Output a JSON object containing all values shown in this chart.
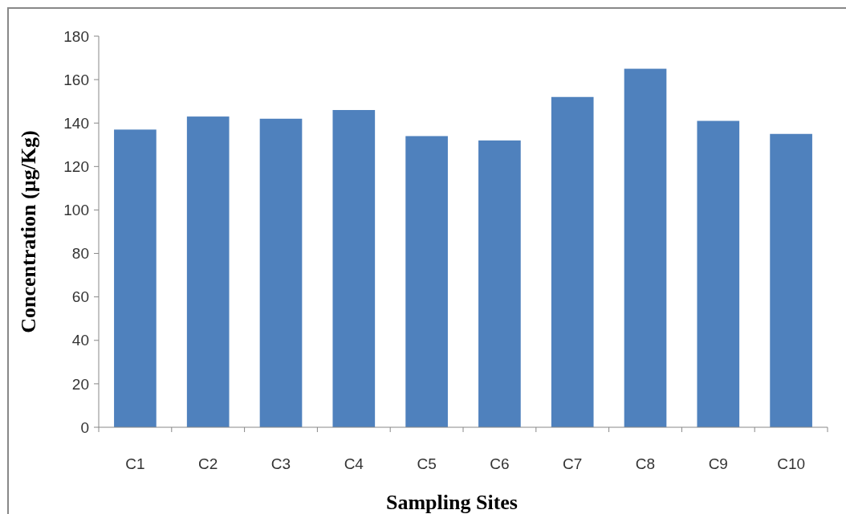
{
  "chart_data": {
    "type": "bar",
    "xlabel": "Sampling Sites",
    "ylabel": "Concentration (µg/Kg)",
    "categories": [
      "C1",
      "C2",
      "C3",
      "C4",
      "C5",
      "C6",
      "C7",
      "C8",
      "C9",
      "C10"
    ],
    "values": [
      137,
      143,
      142,
      146,
      134,
      132,
      152,
      165,
      141,
      135
    ],
    "color": "#4f81bd",
    "ylim": [
      0,
      180
    ],
    "yticks": [
      0,
      20,
      40,
      60,
      80,
      100,
      120,
      140,
      160,
      180
    ],
    "grid": false
  }
}
